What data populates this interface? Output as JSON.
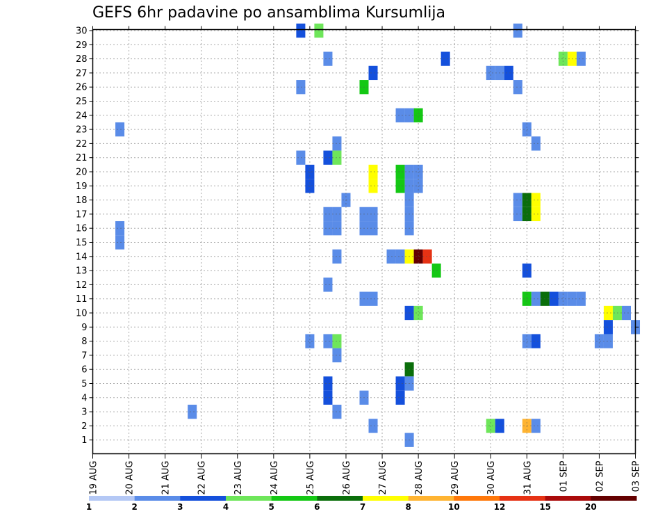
{
  "chart_data": {
    "type": "heatmap",
    "title": "GEFS 6hr padavine po ansamblima Kursumlija",
    "x_labels": [
      "19 AUG",
      "20 AUG",
      "21 AUG",
      "22 AUG",
      "23 AUG",
      "24 AUG",
      "25 AUG",
      "26 AUG",
      "27 AUG",
      "28 AUG",
      "29 AUG",
      "30 AUG",
      "31 AUG",
      "01 SEP",
      "02 SEP",
      "03 SEP"
    ],
    "x_range": [
      0,
      60
    ],
    "steps_per_day": 4,
    "y_labels": [
      "1",
      "2",
      "3",
      "4",
      "5",
      "6",
      "7",
      "8",
      "9",
      "10",
      "11",
      "12",
      "13",
      "14",
      "15",
      "16",
      "17",
      "18",
      "19",
      "20",
      "21",
      "22",
      "23",
      "24",
      "25",
      "26",
      "27",
      "28",
      "29",
      "30"
    ],
    "y_range": [
      1,
      30
    ],
    "grid": true,
    "colorbar": {
      "position": "bottom",
      "labels": [
        "1",
        "2",
        "3",
        "4",
        "5",
        "6",
        "7",
        "8",
        "10",
        "12",
        "15",
        "20"
      ],
      "colors": [
        "#b4c8f5",
        "#5a8ce8",
        "#1450dc",
        "#6ee65a",
        "#14c814",
        "#0a6e0a",
        "#ffff00",
        "#ffb432",
        "#ff780a",
        "#e63214",
        "#aa0a0a",
        "#640000"
      ]
    },
    "cells": [
      [
        30,
        23,
        2
      ],
      [
        30,
        25,
        3
      ],
      [
        30,
        47,
        1
      ],
      [
        28,
        26,
        1
      ],
      [
        28,
        39,
        2
      ],
      [
        28,
        52,
        3
      ],
      [
        28,
        53,
        6
      ],
      [
        28,
        54,
        1
      ],
      [
        27,
        31,
        2
      ],
      [
        27,
        44,
        1
      ],
      [
        27,
        45,
        1
      ],
      [
        27,
        46,
        2
      ],
      [
        26,
        23,
        1
      ],
      [
        26,
        30,
        4
      ],
      [
        26,
        47,
        1
      ],
      [
        24,
        34,
        1
      ],
      [
        24,
        35,
        1
      ],
      [
        24,
        36,
        4
      ],
      [
        23,
        3,
        1
      ],
      [
        23,
        48,
        1
      ],
      [
        22,
        27,
        1
      ],
      [
        22,
        49,
        1
      ],
      [
        21,
        23,
        1
      ],
      [
        21,
        26,
        2
      ],
      [
        21,
        27,
        3
      ],
      [
        20,
        24,
        2
      ],
      [
        20,
        31,
        6
      ],
      [
        20,
        34,
        4
      ],
      [
        20,
        35,
        1
      ],
      [
        20,
        36,
        1
      ],
      [
        19,
        24,
        2
      ],
      [
        19,
        31,
        6
      ],
      [
        19,
        34,
        4
      ],
      [
        19,
        35,
        1
      ],
      [
        19,
        36,
        1
      ],
      [
        18,
        28,
        1
      ],
      [
        18,
        35,
        1
      ],
      [
        18,
        47,
        1
      ],
      [
        18,
        48,
        5
      ],
      [
        18,
        49,
        6
      ],
      [
        17,
        26,
        1
      ],
      [
        17,
        27,
        1
      ],
      [
        17,
        30,
        1
      ],
      [
        17,
        31,
        1
      ],
      [
        17,
        35,
        1
      ],
      [
        17,
        47,
        1
      ],
      [
        17,
        48,
        5
      ],
      [
        17,
        49,
        6
      ],
      [
        16,
        3,
        1
      ],
      [
        16,
        26,
        1
      ],
      [
        16,
        27,
        1
      ],
      [
        16,
        30,
        1
      ],
      [
        16,
        31,
        1
      ],
      [
        16,
        35,
        1
      ],
      [
        15,
        3,
        1
      ],
      [
        14,
        27,
        1
      ],
      [
        14,
        33,
        1
      ],
      [
        14,
        34,
        1
      ],
      [
        14,
        35,
        6
      ],
      [
        14,
        36,
        11
      ],
      [
        14,
        37,
        9
      ],
      [
        13,
        38,
        4
      ],
      [
        13,
        48,
        2
      ],
      [
        12,
        26,
        1
      ],
      [
        11,
        30,
        1
      ],
      [
        11,
        31,
        1
      ],
      [
        11,
        48,
        4
      ],
      [
        11,
        49,
        1
      ],
      [
        11,
        50,
        5
      ],
      [
        11,
        51,
        2
      ],
      [
        11,
        52,
        1
      ],
      [
        11,
        53,
        1
      ],
      [
        11,
        54,
        1
      ],
      [
        10,
        35,
        2
      ],
      [
        10,
        36,
        3
      ],
      [
        10,
        57,
        6
      ],
      [
        10,
        58,
        3
      ],
      [
        10,
        59,
        1
      ],
      [
        9,
        57,
        2
      ],
      [
        9,
        60,
        1
      ],
      [
        8,
        24,
        1
      ],
      [
        8,
        26,
        1
      ],
      [
        8,
        27,
        3
      ],
      [
        8,
        48,
        1
      ],
      [
        8,
        49,
        2
      ],
      [
        8,
        56,
        1
      ],
      [
        8,
        57,
        1
      ],
      [
        7,
        27,
        1
      ],
      [
        6,
        35,
        5
      ],
      [
        5,
        26,
        2
      ],
      [
        5,
        34,
        2
      ],
      [
        5,
        35,
        1
      ],
      [
        4,
        26,
        2
      ],
      [
        4,
        30,
        1
      ],
      [
        4,
        34,
        2
      ],
      [
        3,
        11,
        1
      ],
      [
        3,
        27,
        1
      ],
      [
        2,
        31,
        1
      ],
      [
        2,
        44,
        3
      ],
      [
        2,
        45,
        2
      ],
      [
        2,
        48,
        7
      ],
      [
        2,
        49,
        1
      ],
      [
        1,
        35,
        1
      ]
    ]
  }
}
